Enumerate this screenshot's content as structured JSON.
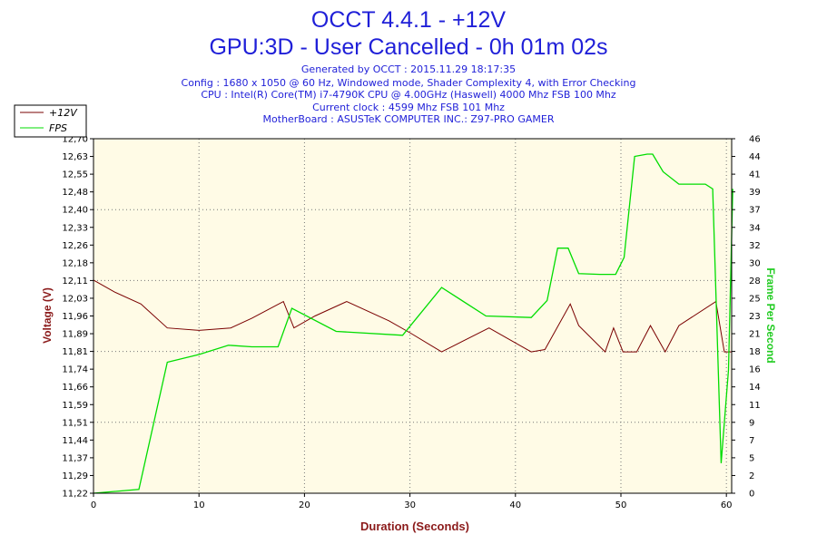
{
  "header": {
    "title": "OCCT 4.4.1 - +12V",
    "subtitle": "GPU:3D - User Cancelled - 0h 01m 02s",
    "info_lines": [
      "Generated by OCCT : 2015.11.29 18:17:35",
      "Config : 1680 x 1050 @ 60 Hz, Windowed mode, Shader Complexity 4, with Error Checking",
      "CPU : Intel(R) Core(TM) i7-4790K CPU @ 4.00GHz (Haswell) 4000 Mhz FSB 100 Mhz",
      "Current clock : 4599 Mhz FSB 101 Mhz",
      "MotherBoard : ASUSTeK COMPUTER INC.: Z97-PRO GAMER"
    ]
  },
  "colors": {
    "title": "#1f1fd8",
    "info": "#1f1fd8",
    "voltage": "#7a0000",
    "fps": "#00dd00",
    "plot_bg": "#fffbe6",
    "axis_label_x": "#8b1a1a",
    "axis_label_y_left": "#8b1a1a",
    "axis_label_y_right": "#22cc22",
    "grid": "#777777",
    "tick_text": "#000000"
  },
  "chart_data": {
    "type": "line",
    "title": "OCCT 4.4.1 - +12V",
    "xlabel": "Duration (Seconds)",
    "ylabel": "Voltage (V)",
    "y2label": "Frame Per Second",
    "xlim": [
      0,
      60.5
    ],
    "ylim": [
      11.22,
      12.7
    ],
    "y2lim": [
      0,
      46
    ],
    "x_ticks": [
      "0",
      "10",
      "20",
      "30",
      "40",
      "50",
      "60"
    ],
    "y_ticks": [
      "11,22",
      "11,29",
      "11,37",
      "11,44",
      "11,51",
      "11,59",
      "11,66",
      "11,74",
      "11,81",
      "11,89",
      "11,96",
      "12,03",
      "12,11",
      "12,18",
      "12,26",
      "12,33",
      "12,40",
      "12,48",
      "12,55",
      "12,63",
      "12,70"
    ],
    "y2_ticks": [
      "0",
      "2",
      "5",
      "7",
      "9",
      "11",
      "14",
      "16",
      "18",
      "21",
      "23",
      "25",
      "28",
      "30",
      "32",
      "34",
      "37",
      "39",
      "41",
      "44",
      "46"
    ],
    "legend": {
      "position": "top-left",
      "entries": [
        "+12V",
        "FPS"
      ]
    },
    "grid": true,
    "series": [
      {
        "name": "+12V",
        "axis": "left",
        "x": [
          0,
          2,
          4.5,
          5,
          7,
          10,
          13,
          15,
          18,
          19,
          21,
          24,
          28,
          30,
          33,
          37.5,
          41.5,
          42.8,
          45.2,
          46,
          48.5,
          49.3,
          50.2,
          51.5,
          52.8,
          54.2,
          55.5,
          59,
          59.8,
          60.5
        ],
        "y": [
          12.11,
          12.06,
          12.01,
          11.99,
          11.91,
          11.9,
          11.91,
          11.95,
          12.02,
          11.91,
          11.96,
          12.02,
          11.94,
          11.89,
          11.81,
          11.91,
          11.81,
          11.82,
          12.01,
          11.92,
          11.81,
          11.91,
          11.81,
          11.81,
          11.92,
          11.81,
          11.92,
          12.02,
          11.81,
          11.81
        ]
      },
      {
        "name": "FPS",
        "axis": "right",
        "x": [
          0,
          4.3,
          7,
          10,
          12.8,
          15,
          17.5,
          18.8,
          23,
          29.3,
          33,
          37.2,
          41.5,
          43,
          44,
          45,
          46,
          48,
          49.5,
          50.3,
          51.3,
          52.5,
          53,
          54,
          55.5,
          58,
          58.7,
          59.5,
          60.2,
          60.6
        ],
        "y": [
          0,
          0.5,
          17,
          18,
          19.2,
          19,
          19,
          24,
          21,
          20.5,
          26.7,
          23,
          22.8,
          25,
          31.8,
          31.8,
          28.5,
          28.4,
          28.4,
          30.6,
          43.7,
          44,
          44,
          41.7,
          40.1,
          40.1,
          39.5,
          3.9,
          16,
          39.5
        ]
      }
    ]
  }
}
